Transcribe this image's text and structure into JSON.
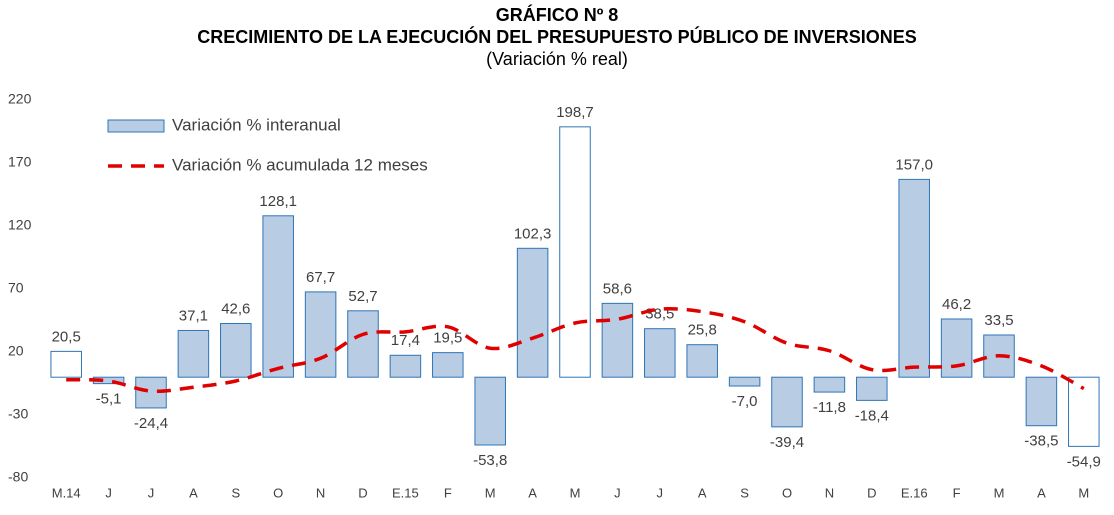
{
  "chart_data": {
    "type": "bar",
    "title": "GRÁFICO Nº 8",
    "subtitle": "CRECIMIENTO DE LA EJECUCIÓN DEL PRESUPUESTO PÚBLICO DE INVERSIONES",
    "note": "(Variación % real)",
    "categories": [
      "M.14",
      "J",
      "J",
      "A",
      "S",
      "O",
      "N",
      "D",
      "E.15",
      "F",
      "M",
      "A",
      "M",
      "J",
      "J",
      "A",
      "S",
      "O",
      "N",
      "D",
      "E.16",
      "F",
      "M",
      "A",
      "M"
    ],
    "ylim": [
      -80,
      220
    ],
    "yticks": [
      -80,
      -30,
      20,
      70,
      120,
      170,
      220
    ],
    "grid": false,
    "legend": "top-left",
    "series": [
      {
        "name": "Variación % interanual",
        "type": "bar",
        "color": "#b8cce4",
        "border_color": "#2e75b6",
        "colors": [
          "#ffffff",
          "#b8cce4",
          "#b8cce4",
          "#b8cce4",
          "#b8cce4",
          "#b8cce4",
          "#b8cce4",
          "#b8cce4",
          "#b8cce4",
          "#b8cce4",
          "#b8cce4",
          "#b8cce4",
          "#ffffff",
          "#b8cce4",
          "#b8cce4",
          "#b8cce4",
          "#b8cce4",
          "#b8cce4",
          "#b8cce4",
          "#b8cce4",
          "#b8cce4",
          "#b8cce4",
          "#b8cce4",
          "#b8cce4",
          "#ffffff"
        ],
        "values": [
          20.5,
          -5.1,
          -24.4,
          37.1,
          42.6,
          128.1,
          67.7,
          52.7,
          17.4,
          19.5,
          -53.8,
          102.3,
          198.7,
          58.6,
          38.5,
          25.8,
          -7.0,
          -39.4,
          -11.8,
          -18.4,
          157.0,
          46.2,
          33.5,
          -38.5,
          -54.9
        ],
        "value_labels": [
          "20,5",
          "-5,1",
          "-24,4",
          "37,1",
          "42,6",
          "128,1",
          "67,7",
          "52,7",
          "17,4",
          "19,5",
          "-53,8",
          "102,3",
          "198,7",
          "58,6",
          "38,5",
          "25,8",
          "-7,0",
          "-39,4",
          "-11,8",
          "-18,4",
          "157,0",
          "46,2",
          "33,5",
          "-38,5",
          "-54,9"
        ]
      },
      {
        "name": "Variación % acumulada 12 meses",
        "type": "line",
        "color": "#e00000",
        "values": [
          -2,
          -3,
          -11,
          -8,
          -3,
          7,
          15,
          34,
          36,
          40,
          23,
          31,
          43,
          46,
          54,
          52,
          44,
          27,
          21,
          6,
          8,
          9,
          17,
          9,
          -9
        ]
      }
    ]
  }
}
